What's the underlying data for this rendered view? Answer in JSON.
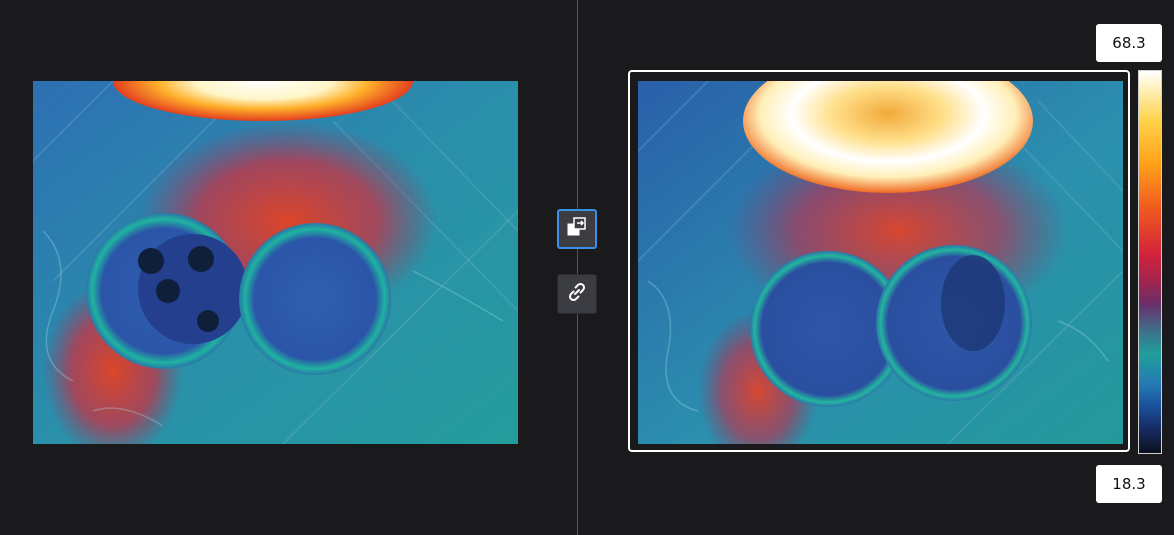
{
  "scale": {
    "max_label": "68.3",
    "min_label": "18.3"
  },
  "toolbar": {
    "swap_icon": "swap-images-icon",
    "link_icon": "link-icon"
  },
  "colors": {
    "background": "#1a1a1c",
    "selection_border": "#ffffff",
    "button_active_border": "#3a8fe8",
    "button_bg": "#3c3d42"
  }
}
